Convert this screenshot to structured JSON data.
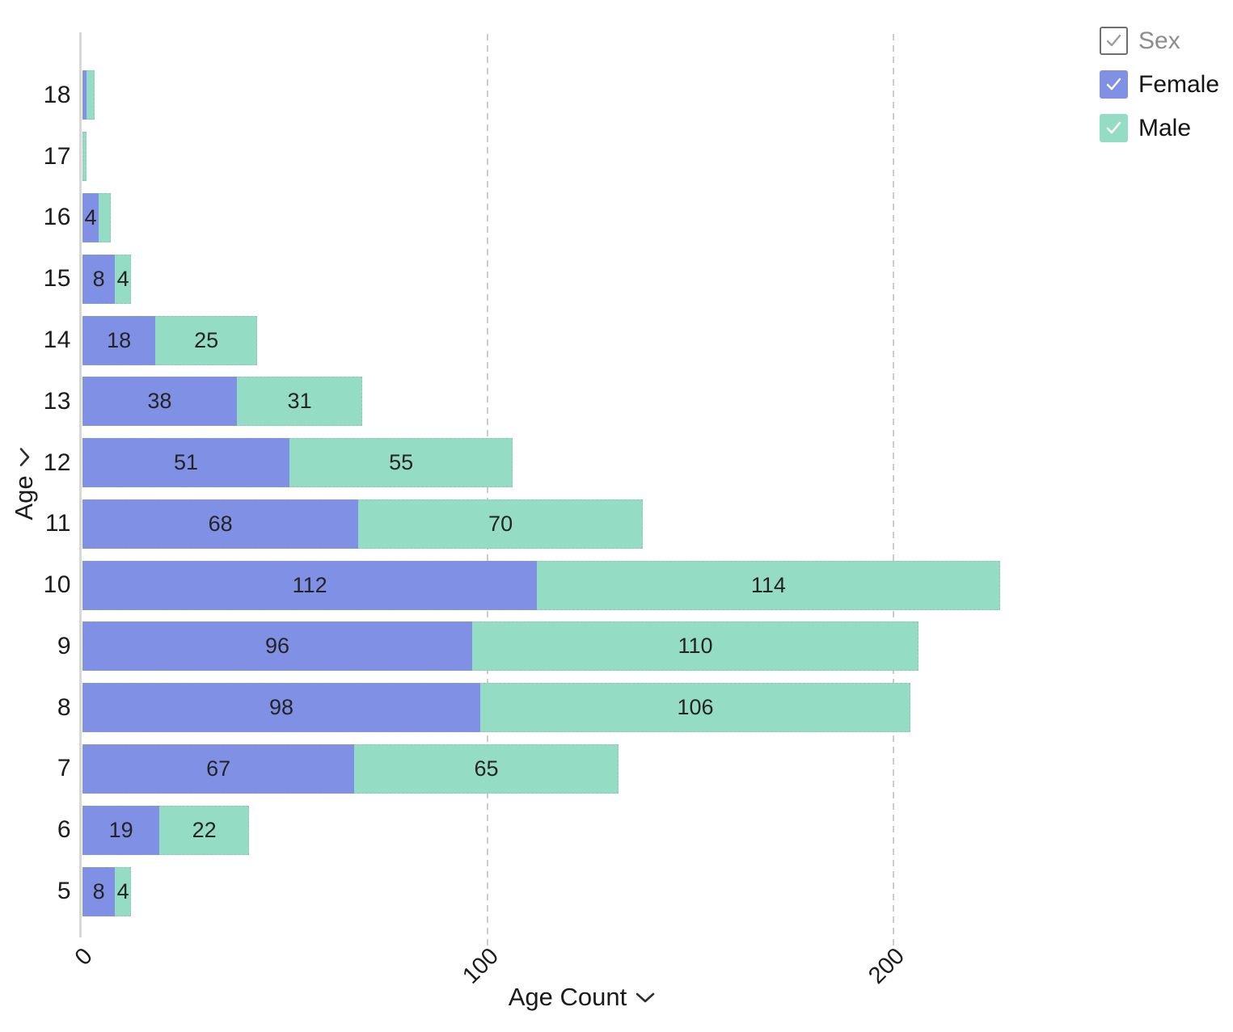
{
  "legend": {
    "title": {
      "label": "Sex",
      "checked": true
    },
    "items": [
      {
        "label": "Female",
        "color": "#8090e4",
        "checked": true
      },
      {
        "label": "Male",
        "color": "#95dcc5",
        "checked": true
      }
    ]
  },
  "axes": {
    "x": {
      "label": "Age Count"
    },
    "y": {
      "label": "Age"
    }
  },
  "colors": {
    "female": "#8090e4",
    "male": "#95dcc5",
    "gridline": "#cdcdcd",
    "axis_line": "#d8d8d8"
  },
  "chart_data": {
    "type": "bar",
    "orientation": "horizontal",
    "stacked": true,
    "title": "",
    "xlabel": "Age Count",
    "ylabel": "Age",
    "categories": [
      18,
      17,
      16,
      15,
      14,
      13,
      12,
      11,
      10,
      9,
      8,
      7,
      6,
      5
    ],
    "series": [
      {
        "name": "Female",
        "color": "#8090e4",
        "values": [
          1,
          0,
          4,
          8,
          18,
          38,
          51,
          68,
          112,
          96,
          98,
          67,
          19,
          8
        ]
      },
      {
        "name": "Male",
        "color": "#95dcc5",
        "values": [
          2,
          1,
          3,
          4,
          25,
          31,
          55,
          70,
          114,
          110,
          106,
          65,
          22,
          4
        ]
      }
    ],
    "xlim": [
      0,
      247
    ],
    "x_ticks": [
      0,
      100,
      200
    ],
    "grid": "vertical-dashed",
    "legend_position": "top-right",
    "label_min_value": 4
  }
}
